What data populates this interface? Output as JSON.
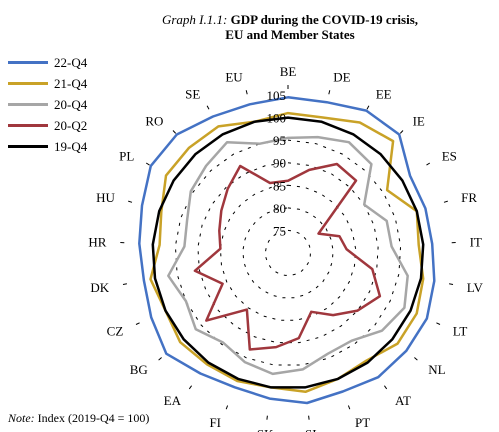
{
  "header": {
    "title_prefix": "Graph I.1.1:",
    "title_main": "GDP during the COVID-19 crisis,",
    "title_line2": "EU and Member States"
  },
  "note": {
    "label": "Note:",
    "text": "Index (2019-Q4 = 100)"
  },
  "chart_data": {
    "type": "radar",
    "title": "Graph I.1.1: GDP during the COVID-19 crisis, EU and Member States",
    "note": "Note: Index (2019-Q4 = 100)",
    "radial_range": [
      70,
      105
    ],
    "radial_ticks": [
      75,
      80,
      85,
      90,
      95,
      100,
      105
    ],
    "categories": [
      "BE",
      "DE",
      "EE",
      "IE",
      "ES",
      "FR",
      "IT",
      "LV",
      "LT",
      "NL",
      "AT",
      "PT",
      "SI",
      "SK",
      "FI",
      "EA",
      "BG",
      "CZ",
      "DK",
      "HR",
      "HU",
      "PL",
      "RO",
      "SE",
      "EU"
    ],
    "legend_position": "top-left",
    "series": [
      {
        "name": "22-Q4",
        "color": "#4472C4",
        "values": [
          104.5,
          104.5,
          106,
          106,
          102,
          102,
          102,
          103,
          104,
          104,
          104,
          103,
          103.5,
          102.5,
          102,
          103,
          105,
          103.5,
          102.5,
          103,
          104,
          106,
          106,
          104.5,
          104
        ]
      },
      {
        "name": "21-Q4",
        "color": "#C9A227",
        "values": [
          101,
          101,
          103,
          104,
          96,
          100,
          99,
          100.5,
          101.5,
          101.5,
          99.5,
          100,
          101,
          100,
          100.5,
          100.5,
          101,
          100,
          101,
          98.5,
          99.5,
          102,
          102,
          102,
          100
        ]
      },
      {
        "name": "20-Q4",
        "color": "#A6A6A6",
        "values": [
          95.5,
          96.5,
          98,
          97,
          90,
          93,
          93,
          97,
          98.5,
          97,
          94,
          94,
          96,
          97,
          96,
          94.5,
          96.5,
          95,
          97,
          93,
          93.5,
          95.5,
          96.5,
          98,
          95
        ]
      },
      {
        "name": "20-Q2",
        "color": "#A0373D",
        "values": [
          86,
          89,
          92.5,
          92,
          78,
          82,
          83,
          89,
          92.5,
          90,
          87,
          84,
          89,
          91,
          93,
          85.5,
          93.5,
          86,
          91,
          85,
          86,
          87.5,
          89.5,
          92,
          86
        ]
      },
      {
        "name": "19-Q4",
        "color": "#000000",
        "values": [
          100,
          100,
          100,
          100,
          100,
          100,
          100,
          100,
          100,
          100,
          100,
          100,
          100,
          100,
          100,
          100,
          100,
          100,
          100,
          100,
          100,
          100,
          100,
          100,
          100
        ]
      }
    ]
  }
}
